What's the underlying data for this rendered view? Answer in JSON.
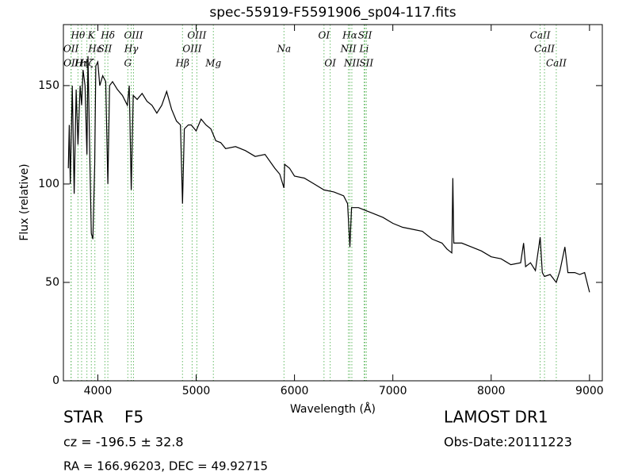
{
  "chart_data": {
    "type": "line",
    "title": "spec-55919-F5591906_sp04-117.fits",
    "x_label": "Wavelength (Å)",
    "y_label": "Flux (relative)",
    "xlim": [
      3650,
      9130
    ],
    "ylim": [
      0,
      181
    ],
    "xticks": [
      4000,
      5000,
      6000,
      7000,
      8000,
      9000
    ],
    "yticks": [
      0,
      50,
      100,
      150
    ],
    "color": "#000000",
    "annotation_color": "#66bb66",
    "x": [
      3700,
      3710,
      3720,
      3740,
      3760,
      3780,
      3798,
      3820,
      3835,
      3850,
      3870,
      3889,
      3900,
      3920,
      3934,
      3950,
      3968,
      3980,
      4000,
      4020,
      4050,
      4080,
      4102,
      4120,
      4150,
      4200,
      4250,
      4300,
      4320,
      4340,
      4360,
      4400,
      4450,
      4500,
      4550,
      4600,
      4650,
      4700,
      4750,
      4800,
      4840,
      4861,
      4880,
      4920,
      4950,
      5000,
      5050,
      5100,
      5150,
      5175,
      5200,
      5250,
      5300,
      5400,
      5500,
      5600,
      5700,
      5800,
      5850,
      5893,
      5900,
      5950,
      6000,
      6100,
      6200,
      6300,
      6400,
      6500,
      6540,
      6563,
      6580,
      6650,
      6700,
      6800,
      6900,
      7000,
      7100,
      7200,
      7300,
      7400,
      7500,
      7550,
      7600,
      7610,
      7620,
      7700,
      7800,
      7900,
      8000,
      8100,
      8200,
      8300,
      8330,
      8350,
      8400,
      8450,
      8498,
      8520,
      8542,
      8600,
      8662,
      8700,
      8750,
      8780,
      8850,
      8900,
      8950,
      9000
    ],
    "values": [
      108,
      130,
      100,
      150,
      95,
      148,
      120,
      150,
      140,
      158,
      150,
      115,
      165,
      110,
      75,
      72,
      110,
      160,
      162,
      150,
      155,
      152,
      100,
      150,
      152,
      148,
      145,
      140,
      150,
      97,
      145,
      143,
      146,
      142,
      140,
      136,
      140,
      147,
      138,
      132,
      130,
      90,
      128,
      130,
      130,
      127,
      133,
      130,
      128,
      125,
      122,
      121,
      118,
      119,
      117,
      114,
      115,
      108,
      105,
      98,
      110,
      108,
      104,
      103,
      100,
      97,
      96,
      94,
      90,
      68,
      88,
      88,
      87,
      85,
      83,
      80,
      78,
      77,
      76,
      72,
      70,
      67,
      65,
      103,
      70,
      70,
      68,
      66,
      63,
      62,
      59,
      60,
      70,
      58,
      60,
      56,
      73,
      55,
      53,
      54,
      50,
      56,
      68,
      55,
      55,
      54,
      55,
      45
    ],
    "annotations": [
      {
        "label": "Hθ",
        "x": 3798
      },
      {
        "label": "K",
        "x": 3934
      },
      {
        "label": "Hδ",
        "x": 4102
      },
      {
        "label": "OIII",
        "x": 4363
      },
      {
        "label": "OIII",
        "x": 5007
      },
      {
        "label": "OI",
        "x": 6300
      },
      {
        "label": "Hα",
        "x": 6563
      },
      {
        "label": "SII",
        "x": 6717
      },
      {
        "label": "CaII",
        "x": 8498
      },
      {
        "label": "OII",
        "x": 3727
      },
      {
        "label": "Hε",
        "x": 3970
      },
      {
        "label": "SII",
        "x": 4072
      },
      {
        "label": "Hγ",
        "x": 4340
      },
      {
        "label": "OIII",
        "x": 4959
      },
      {
        "label": "Na",
        "x": 5893
      },
      {
        "label": "NII",
        "x": 6548
      },
      {
        "label": "Li",
        "x": 6708
      },
      {
        "label": "CaII",
        "x": 8542
      },
      {
        "label": "OII",
        "x": 3729
      },
      {
        "label": "Hη",
        "x": 3835
      },
      {
        "label": "Hζ",
        "x": 3889
      },
      {
        "label": "G",
        "x": 4305
      },
      {
        "label": "Hβ",
        "x": 4861
      },
      {
        "label": "Mg",
        "x": 5175
      },
      {
        "label": "OI",
        "x": 6363
      },
      {
        "label": "NII",
        "x": 6583
      },
      {
        "label": "SII",
        "x": 6731
      },
      {
        "label": "CaII",
        "x": 8662
      }
    ],
    "info": {
      "class": "STAR",
      "subclass": "F5",
      "survey": "LAMOST DR1",
      "cz": "cz = -196.5 ± 32.8",
      "obs_date": "Obs-Date:20111223",
      "coords": "RA = 166.96203, DEC = 49.92715"
    }
  }
}
